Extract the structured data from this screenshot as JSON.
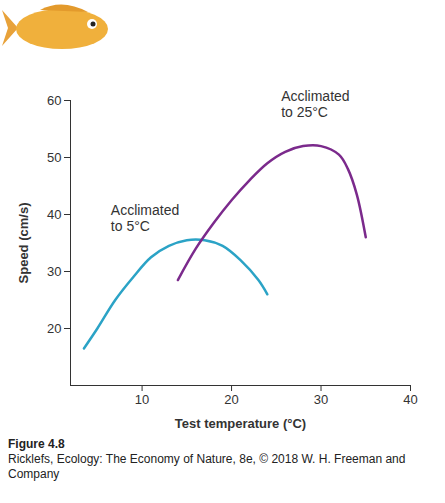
{
  "chart_data": {
    "type": "line",
    "x_label": "Test temperature (°C)",
    "y_label": "Speed (cm/s)",
    "caption": "Figure 4.8",
    "source": "Ricklefs, Ecology: The Economy of Nature, 8e, © 2018 W. H. Freeman and Company",
    "xlim": [
      2,
      40
    ],
    "xticks": [
      10,
      20,
      30,
      40
    ],
    "ylim": [
      10,
      60
    ],
    "yticks": [
      20,
      30,
      40,
      50,
      60
    ],
    "grid": false,
    "series": [
      {
        "name": "Acclimated to 5°C",
        "color": "#2ba3c6",
        "x": [
          3.5,
          5,
          7,
          9,
          11,
          13,
          15,
          17,
          19,
          21,
          23,
          24
        ],
        "values": [
          16.5,
          20,
          25,
          29,
          32.5,
          34.5,
          35.5,
          35.5,
          34.5,
          32,
          28.5,
          26
        ]
      },
      {
        "name": "Acclimated to 25°C",
        "color": "#7b2a8c",
        "x": [
          14,
          16,
          18,
          20,
          22,
          24,
          26,
          28,
          30,
          32,
          33,
          34,
          35
        ],
        "values": [
          28.5,
          34,
          38.5,
          42.5,
          46,
          49,
          51,
          52,
          52,
          50.5,
          48,
          43.5,
          36
        ]
      }
    ]
  }
}
